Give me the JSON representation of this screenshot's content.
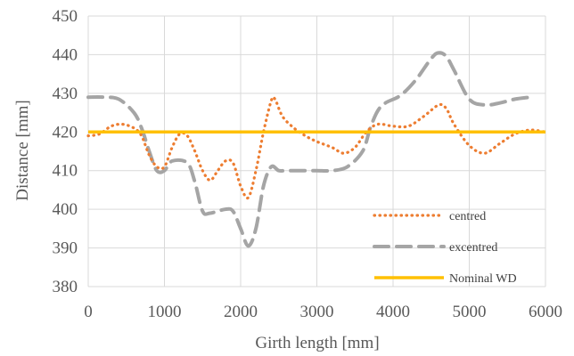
{
  "chart_data": {
    "type": "line",
    "xlabel": "Girth length [mm]",
    "ylabel": "Distance [mm]",
    "xlim": [
      0,
      6000
    ],
    "ylim": [
      380,
      450
    ],
    "xticks": [
      0,
      1000,
      2000,
      3000,
      4000,
      5000,
      6000
    ],
    "yticks": [
      380,
      390,
      400,
      410,
      420,
      430,
      440,
      450
    ],
    "grid": true,
    "legend_position": "bottom-right",
    "series": [
      {
        "name": "centred",
        "style": "dotted",
        "color": "#ED7D31",
        "x": [
          0,
          150,
          300,
          450,
          600,
          700,
          800,
          900,
          1000,
          1100,
          1200,
          1300,
          1400,
          1500,
          1600,
          1700,
          1800,
          1900,
          2000,
          2100,
          2200,
          2300,
          2400,
          2450,
          2550,
          2700,
          2850,
          3000,
          3200,
          3350,
          3500,
          3650,
          3800,
          4000,
          4200,
          4400,
          4600,
          4700,
          4800,
          5000,
          5200,
          5400,
          5600,
          5800,
          6000
        ],
        "values": [
          419,
          419.5,
          421.5,
          422,
          421,
          419,
          414,
          411,
          411,
          416,
          419.5,
          419,
          415,
          410,
          407.5,
          410,
          412.5,
          412,
          406,
          403,
          410,
          420,
          428,
          428.5,
          424,
          421,
          419,
          417.5,
          416,
          414.5,
          416,
          420,
          422,
          421.5,
          421.5,
          424,
          427,
          426,
          422,
          416.5,
          414.5,
          417,
          419.5,
          420.5,
          420
        ]
      },
      {
        "name": "excentred",
        "style": "dashed",
        "color": "#A5A5A5",
        "x": [
          0,
          200,
          400,
          600,
          700,
          800,
          900,
          1000,
          1100,
          1300,
          1400,
          1500,
          1600,
          1800,
          1900,
          2000,
          2100,
          2200,
          2300,
          2400,
          2500,
          2600,
          2800,
          3000,
          3200,
          3400,
          3600,
          3700,
          3800,
          3900,
          4100,
          4300,
          4500,
          4600,
          4700,
          4800,
          5000,
          5200,
          5400,
          5600,
          5800
        ],
        "values": [
          429,
          429,
          428.5,
          425,
          421,
          415,
          410,
          410,
          412.5,
          412,
          407,
          399.5,
          399,
          400,
          399.5,
          395,
          390.5,
          395,
          406,
          411,
          410,
          410,
          410,
          410,
          410,
          411,
          415,
          421,
          425.5,
          427.5,
          429.5,
          433.5,
          439,
          440.5,
          439.5,
          436,
          428.5,
          427,
          427.5,
          428.5,
          429
        ]
      },
      {
        "name": "Nominal WD",
        "style": "solid",
        "color": "#FFC000",
        "x": [
          0,
          6000
        ],
        "values": [
          420,
          420
        ]
      }
    ]
  }
}
